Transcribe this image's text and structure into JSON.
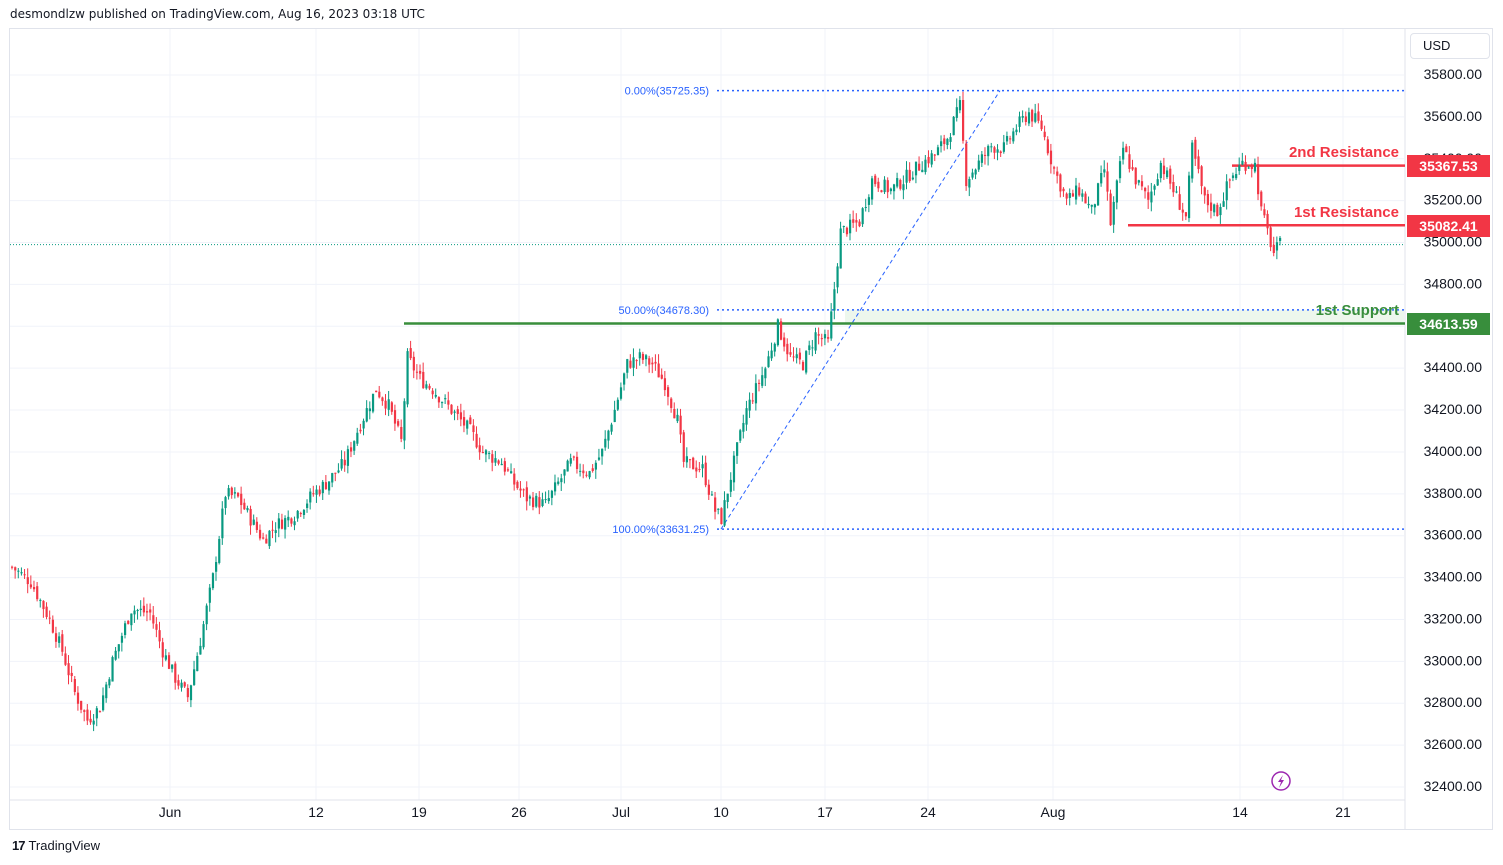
{
  "header": {
    "published": "desmondlzw published on TradingView.com, Aug 16, 2023 03:18 UTC"
  },
  "toolbar": {
    "currency": "USD"
  },
  "footer": {
    "logo_text": "TradingView"
  },
  "colors": {
    "up": "#089981",
    "down": "#f23645",
    "fib": "#2962ff",
    "resistance": "#f23645",
    "support": "#388e3c",
    "grid": "#f0f3fa",
    "axis_text": "#131722"
  },
  "levels": {
    "resistance_2": {
      "name": "2nd Resistance",
      "value": "35367.53"
    },
    "resistance_1": {
      "name": "1st Resistance",
      "value": "35082.41"
    },
    "support_1": {
      "name": "1st Support",
      "value": "34613.59"
    }
  },
  "fib": {
    "level_0": "0.00%(35725.35)",
    "level_50": "50.00%(34678.30)",
    "level_100": "100.00%(33631.25)"
  },
  "chart_data": {
    "type": "candlestick",
    "y_axis": {
      "ticks": [
        "35800.00",
        "35600.00",
        "35400.00",
        "35200.00",
        "35000.00",
        "34800.00",
        "34600.00",
        "34400.00",
        "34200.00",
        "34000.00",
        "33800.00",
        "33600.00",
        "33400.00",
        "33200.00",
        "33000.00",
        "32800.00",
        "32600.00",
        "32400.00"
      ],
      "ylim": [
        32340,
        35870
      ]
    },
    "x_axis": {
      "ticks": [
        "Jun",
        "12",
        "19",
        "26",
        "Jul",
        "10",
        "17",
        "24",
        "Aug",
        "14",
        "21"
      ]
    },
    "horizontal_levels": [
      {
        "label": "2nd Resistance",
        "value": 35367.53
      },
      {
        "label": "1st Resistance",
        "value": 35082.41
      },
      {
        "label": "1st Support",
        "value": 34613.59
      }
    ],
    "fibonacci": [
      {
        "ratio": "0.00%",
        "value": 35725.35
      },
      {
        "ratio": "50.00%",
        "value": 34678.3
      },
      {
        "ratio": "100.00%",
        "value": 33631.25
      }
    ],
    "current_price_approx": 34990,
    "close_path": [
      [
        0,
        33450
      ],
      [
        6,
        33380
      ],
      [
        12,
        33200
      ],
      [
        16,
        33050
      ],
      [
        20,
        32850
      ],
      [
        24,
        32720
      ],
      [
        28,
        32780
      ],
      [
        32,
        33000
      ],
      [
        38,
        33250
      ],
      [
        44,
        33230
      ],
      [
        48,
        33050
      ],
      [
        52,
        32920
      ],
      [
        56,
        32830
      ],
      [
        60,
        33100
      ],
      [
        64,
        33400
      ],
      [
        68,
        33800
      ],
      [
        72,
        33780
      ],
      [
        76,
        33680
      ],
      [
        80,
        33580
      ],
      [
        84,
        33650
      ],
      [
        90,
        33700
      ],
      [
        96,
        33800
      ],
      [
        100,
        33850
      ],
      [
        106,
        33950
      ],
      [
        110,
        34100
      ],
      [
        116,
        34300
      ],
      [
        120,
        34220
      ],
      [
        124,
        34050
      ],
      [
        126,
        34450
      ],
      [
        130,
        34350
      ],
      [
        134,
        34300
      ],
      [
        140,
        34200
      ],
      [
        146,
        34100
      ],
      [
        150,
        34000
      ],
      [
        156,
        33950
      ],
      [
        160,
        33850
      ],
      [
        164,
        33780
      ],
      [
        170,
        33750
      ],
      [
        174,
        33850
      ],
      [
        178,
        33950
      ],
      [
        184,
        33900
      ],
      [
        188,
        34000
      ],
      [
        192,
        34200
      ],
      [
        196,
        34420
      ],
      [
        200,
        34450
      ],
      [
        204,
        34420
      ],
      [
        208,
        34330
      ],
      [
        212,
        34150
      ],
      [
        214,
        33950
      ],
      [
        220,
        33920
      ],
      [
        224,
        33720
      ],
      [
        226,
        33680
      ],
      [
        230,
        33950
      ],
      [
        234,
        34200
      ],
      [
        240,
        34400
      ],
      [
        244,
        34600
      ],
      [
        248,
        34450
      ],
      [
        252,
        34420
      ],
      [
        256,
        34560
      ],
      [
        260,
        34520
      ],
      [
        262,
        34780
      ],
      [
        264,
        35050
      ],
      [
        270,
        35100
      ],
      [
        274,
        35300
      ],
      [
        280,
        35250
      ],
      [
        284,
        35300
      ],
      [
        290,
        35380
      ],
      [
        294,
        35420
      ],
      [
        298,
        35500
      ],
      [
        302,
        35650
      ],
      [
        304,
        35300
      ],
      [
        308,
        35380
      ],
      [
        312,
        35460
      ],
      [
        316,
        35450
      ],
      [
        320,
        35550
      ],
      [
        324,
        35620
      ],
      [
        328,
        35550
      ],
      [
        332,
        35350
      ],
      [
        336,
        35200
      ],
      [
        340,
        35250
      ],
      [
        344,
        35150
      ],
      [
        348,
        35350
      ],
      [
        350,
        35090
      ],
      [
        354,
        35450
      ],
      [
        358,
        35300
      ],
      [
        362,
        35200
      ],
      [
        366,
        35380
      ],
      [
        370,
        35250
      ],
      [
        374,
        35120
      ],
      [
        376,
        35450
      ],
      [
        380,
        35200
      ],
      [
        384,
        35150
      ],
      [
        388,
        35300
      ],
      [
        392,
        35380
      ],
      [
        396,
        35370
      ],
      [
        398,
        35150
      ],
      [
        402,
        34950
      ],
      [
        404,
        34990
      ]
    ]
  }
}
